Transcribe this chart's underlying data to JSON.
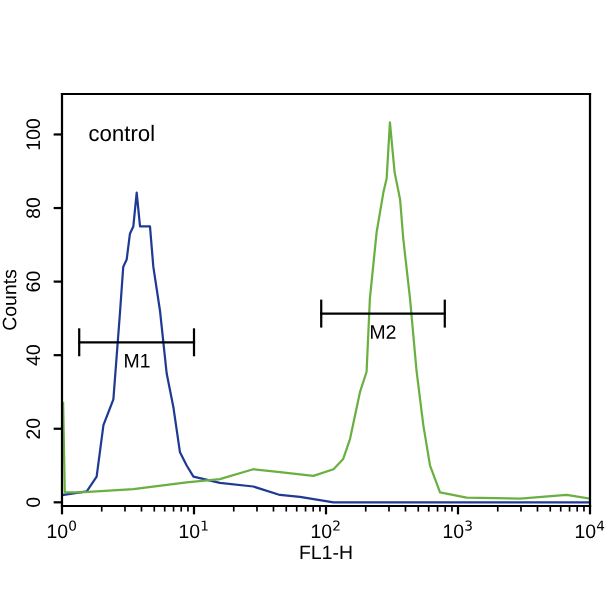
{
  "chart_data": {
    "type": "line",
    "xlabel": "FL1-H",
    "ylabel": "Counts",
    "log": "x",
    "xlim": [
      1,
      10000
    ],
    "ylim": [
      -1,
      111
    ],
    "xticks": [
      {
        "value": 1,
        "label": "10$^{0}$"
      },
      {
        "value": 10,
        "label": "10$^{1}$"
      },
      {
        "value": 100,
        "label": "10$^{2}$"
      },
      {
        "value": 1000,
        "label": "10$^{3}$"
      },
      {
        "value": 10000,
        "label": "10$^{4}$"
      }
    ],
    "yticks": [
      0,
      20,
      40,
      60,
      80,
      100
    ],
    "grid": false,
    "marker": "none",
    "line_style": "solid",
    "annotations": [
      "control",
      {
        "text": "M1",
        "x": 3.7,
        "y": 43.5
      },
      {
        "text": "M2",
        "x": 270,
        "y": 51.3
      }
    ],
    "series": [
      {
        "color": "#1f3a93",
        "x": [
          1.02,
          1.54,
          1.83,
          2.06,
          2.45,
          2.75,
          2.91,
          3.09,
          3.27,
          3.47,
          3.68,
          3.9,
          4.13,
          4.64,
          4.92,
          5.53,
          6.21,
          6.97,
          7.83,
          8.8,
          9.9,
          15.7,
          28.1,
          44.8,
          63.5,
          114,
          364,
          10000
        ],
        "values": [
          2,
          3,
          7,
          21,
          28,
          51.6,
          64,
          66,
          73,
          75,
          84.2,
          75,
          75,
          75,
          64,
          52,
          35,
          26,
          13.6,
          10,
          7,
          5.3,
          4.3,
          2,
          1.5,
          0,
          0,
          0
        ]
      },
      {
        "color": "#6ab040",
        "x": [
          1.02,
          1.05,
          1.37,
          3.47,
          8.8,
          15.7,
          28.1,
          44.8,
          80.2,
          114,
          135,
          152,
          181,
          203,
          215,
          242,
          272,
          288,
          305,
          331,
          364,
          385,
          433,
          486,
          546,
          614,
          731,
          1164,
          2950,
          6650,
          10000
        ],
        "values": [
          27,
          2.7,
          2.7,
          3.6,
          5.4,
          6.3,
          9,
          8.2,
          7.2,
          9,
          11.8,
          17.2,
          30,
          35.5,
          55.4,
          73.5,
          84.2,
          88,
          103.3,
          89.7,
          82.4,
          71.6,
          55.4,
          35.5,
          21,
          10,
          2.7,
          1.3,
          1,
          2,
          1
        ]
      },
      {
        "color": "#000000",
        "x": [
          1.35,
          10
        ],
        "values": [
          43.5,
          43.5
        ]
      },
      {
        "color": "#000000",
        "x": [
          92,
          794
        ],
        "values": [
          51.3,
          51.3
        ]
      }
    ]
  }
}
